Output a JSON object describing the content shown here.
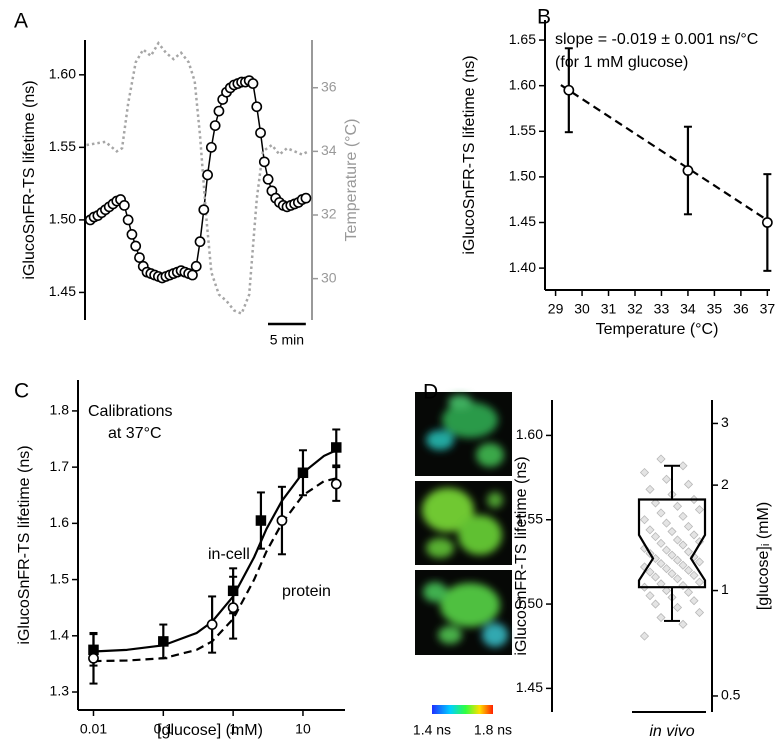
{
  "chart_data": [
    {
      "type": "line",
      "panel": "A",
      "ylabel": "iGlucoSnFR-TS lifetime (ns)",
      "y2label": "Temperature (°C)",
      "xlim": [
        -0.7,
        29.3
      ],
      "ylim": [
        1.431,
        1.624
      ],
      "yticks": [
        1.45,
        {
          "value": 1.5,
          "label": "1.50"
        },
        1.55,
        {
          "value": 1.6,
          "label": "1.60"
        }
      ],
      "y2lim": [
        28.7,
        37.5
      ],
      "y2ticks": [
        30,
        32,
        34,
        36
      ],
      "scale_bar": {
        "value": 5,
        "label": "5 min"
      },
      "series": [
        {
          "color": "#000000",
          "marker": "circle",
          "filled": false,
          "line_style": "solid",
          "x": [
            0,
            0.5,
            1,
            1.5,
            2,
            2.5,
            3,
            3.5,
            4,
            4.5,
            5,
            5.5,
            6,
            6.5,
            7,
            7.5,
            8,
            8.5,
            9,
            9.5,
            10,
            10.5,
            11,
            11.5,
            12,
            12.5,
            13,
            13.5,
            14,
            14.5,
            15,
            15.5,
            16,
            16.5,
            17,
            17.5,
            18,
            18.5,
            19,
            19.5,
            20,
            20.5,
            21,
            21.5,
            22,
            22.5,
            23,
            23.5,
            24,
            24.5,
            25,
            25.5,
            26,
            26.5,
            27,
            27.5,
            28,
            28.5
          ],
          "values": [
            1.5,
            1.502,
            1.503,
            1.505,
            1.507,
            1.509,
            1.511,
            1.513,
            1.514,
            1.51,
            1.5,
            1.49,
            1.482,
            1.474,
            1.468,
            1.464,
            1.463,
            1.462,
            1.461,
            1.46,
            1.461,
            1.462,
            1.463,
            1.464,
            1.465,
            1.464,
            1.463,
            1.462,
            1.468,
            1.485,
            1.507,
            1.531,
            1.55,
            1.565,
            1.575,
            1.583,
            1.588,
            1.591,
            1.593,
            1.594,
            1.595,
            1.595,
            1.596,
            1.594,
            1.578,
            1.56,
            1.54,
            1.528,
            1.52,
            1.515,
            1.512,
            1.51,
            1.509,
            1.51,
            1.511,
            1.512,
            1.514,
            1.515
          ]
        },
        {
          "color": "#a6a6a6",
          "axis": "y2",
          "line_style": "dotted",
          "x": [
            -0.5,
            2,
            3.5,
            4.2,
            5,
            6,
            7,
            8,
            9,
            10,
            11,
            12,
            13,
            13.8,
            14.5,
            15.3,
            16,
            17,
            18,
            19,
            20,
            21,
            22,
            22.8,
            24,
            25,
            26,
            27,
            28,
            28.8
          ],
          "values": [
            34.2,
            34.3,
            34.0,
            34.1,
            35.5,
            36.8,
            37.2,
            37.0,
            37.4,
            37.1,
            36.9,
            37.1,
            36.8,
            36.2,
            34.5,
            32.0,
            30.2,
            29.5,
            29.3,
            29.0,
            28.9,
            29.5,
            32.5,
            34.0,
            34.2,
            33.9,
            34.1,
            34.0,
            33.9,
            34.0
          ]
        }
      ]
    },
    {
      "type": "scatter",
      "panel": "B",
      "xlabel": "Temperature (°C)",
      "ylabel": "iGlucoSnFR-TS lifetime (ns)",
      "annotations": [
        "slope = -0.019 ± 0.001 ns/°C",
        "(for 1 mM glucose)"
      ],
      "xlim": [
        28.6,
        37.1
      ],
      "xticks": [
        29,
        30,
        31,
        32,
        33,
        34,
        35,
        36,
        37
      ],
      "ylim": [
        1.376,
        1.672
      ],
      "yticks": [
        {
          "value": 1.4,
          "label": "1.40"
        },
        1.45,
        {
          "value": 1.5,
          "label": "1.50"
        },
        1.55,
        {
          "value": 1.6,
          "label": "1.60"
        },
        1.65
      ],
      "series": [
        {
          "color": "#000000",
          "marker": "circle",
          "filled": false,
          "x": [
            29.5,
            34,
            37
          ],
          "values": [
            1.595,
            1.507,
            1.45
          ],
          "errors": [
            0.046,
            0.048,
            0.053
          ]
        }
      ],
      "fits": [
        {
          "color": "#000000",
          "line_style": "dashed",
          "x": [
            29.2,
            37.1
          ],
          "values": [
            1.6007,
            1.4506
          ]
        }
      ]
    },
    {
      "type": "scatter",
      "panel": "C",
      "xscale": "log",
      "xlabel": "[glucose] (mM)",
      "ylabel": "iGlucoSnFR-TS lifetime (ns)",
      "annotations": [
        "Calibrations",
        "at 37°C",
        "in-cell",
        "protein"
      ],
      "xlim": [
        0.006,
        40
      ],
      "xticks": [
        0.01,
        0.1,
        1,
        10
      ],
      "ylim": [
        1.268,
        1.855
      ],
      "yticks": [
        1.3,
        1.4,
        1.5,
        1.6,
        1.7,
        1.8
      ],
      "series": [
        {
          "color": "#000000",
          "marker": "square",
          "filled": true,
          "x": [
            0.01,
            0.1,
            1,
            2.5,
            10,
            30
          ],
          "values": [
            1.375,
            1.39,
            1.48,
            1.605,
            1.69,
            1.735
          ],
          "errors": [
            0.028,
            0.03,
            0.04,
            0.05,
            0.04,
            0.032
          ]
        },
        {
          "color": "#000000",
          "marker": "circle",
          "filled": false,
          "x": [
            0.01,
            0.5,
            1,
            5,
            30
          ],
          "values": [
            1.36,
            1.42,
            1.45,
            1.605,
            1.67
          ],
          "errors": [
            0.045,
            0.05,
            0.055,
            0.06,
            0.03
          ]
        }
      ],
      "fits": [
        {
          "color": "#000000",
          "line_style": "solid",
          "x": [
            0.01,
            0.03,
            0.1,
            0.3,
            0.5,
            1,
            2,
            3,
            5,
            10,
            20,
            30
          ],
          "values": [
            1.372,
            1.375,
            1.383,
            1.405,
            1.425,
            1.47,
            1.54,
            1.59,
            1.64,
            1.69,
            1.72,
            1.73
          ]
        },
        {
          "color": "#000000",
          "line_style": "dashed",
          "x": [
            0.01,
            0.03,
            0.1,
            0.3,
            0.5,
            1,
            2,
            3,
            5,
            10,
            20,
            30
          ],
          "values": [
            1.355,
            1.356,
            1.36,
            1.375,
            1.39,
            1.43,
            1.5,
            1.55,
            1.6,
            1.65,
            1.675,
            1.68
          ]
        }
      ]
    },
    {
      "type": "box",
      "panel": "D",
      "ylabel": "iGlucoSnFR-TS lifetime (ns)",
      "y2label": "[glucose]ᵢ (mM)",
      "categories": [
        "in vivo"
      ],
      "ylim": [
        1.436,
        1.621
      ],
      "yticks": [
        1.45,
        {
          "value": 1.5,
          "label": "1.50"
        },
        1.55,
        {
          "value": 1.6,
          "label": "1.60"
        }
      ],
      "y2scale": "log",
      "y2lim": [
        0.45,
        3.5
      ],
      "y2ticks": [
        0.5,
        1,
        2,
        3
      ],
      "box": {
        "whisker_low": 1.49,
        "q1": 1.51,
        "notch_low": 1.514,
        "median": 1.527,
        "notch_high": 1.541,
        "q3": 1.562,
        "whisker_high": 1.582
      },
      "points": [
        1.481,
        1.488,
        1.492,
        1.495,
        1.498,
        1.5,
        1.502,
        1.504,
        1.505,
        1.507,
        1.508,
        1.51,
        1.511,
        1.512,
        1.513,
        1.515,
        1.516,
        1.517,
        1.518,
        1.519,
        1.52,
        1.521,
        1.522,
        1.523,
        1.524,
        1.525,
        1.526,
        1.527,
        1.528,
        1.529,
        1.53,
        1.531,
        1.532,
        1.533,
        1.535,
        1.536,
        1.537,
        1.538,
        1.54,
        1.541,
        1.543,
        1.544,
        1.546,
        1.548,
        1.55,
        1.552,
        1.554,
        1.556,
        1.558,
        1.56,
        1.562,
        1.565,
        1.568,
        1.571,
        1.574,
        1.578,
        1.582,
        1.586
      ],
      "colorbar": {
        "lim": [
          1.4,
          1.8
        ],
        "ticks": [
          {
            "value": 1.4,
            "label": "1.4 ns"
          },
          {
            "value": 1.8,
            "label": "1.8 ns"
          }
        ]
      }
    }
  ]
}
